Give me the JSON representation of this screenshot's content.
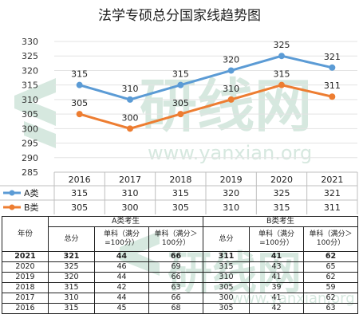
{
  "chart_data": {
    "type": "line",
    "title": "法学专硕总分国家线趋势图",
    "categories": [
      "2016",
      "2017",
      "2018",
      "2019",
      "2020",
      "2021"
    ],
    "ylim": [
      285,
      330
    ],
    "yticks": [
      285,
      290,
      295,
      300,
      305,
      310,
      315,
      320,
      325,
      330
    ],
    "grid": true,
    "legend": "left-of-data-table",
    "series": [
      {
        "name": "A类",
        "values": [
          315,
          310,
          315,
          320,
          325,
          321
        ],
        "color": "#5b9bd5"
      },
      {
        "name": "B类",
        "values": [
          305,
          300,
          305,
          310,
          315,
          311
        ],
        "color": "#ed7d31"
      }
    ]
  },
  "watermark": {
    "cn": "研线网",
    "url": "www.yanxian.org",
    "color": "#d6e8df"
  },
  "score_table": {
    "year_header": "年份",
    "group_a": "A类考生",
    "group_b": "B类考生",
    "col_total": "总分",
    "col_single_100": "单科（满分=100分）",
    "col_single_over100": "单科（满分＞100分）",
    "rows": [
      {
        "year": "2021",
        "a_total": "321",
        "a_s1": "44",
        "a_s2": "66",
        "b_total": "311",
        "b_s1": "41",
        "b_s2": "62",
        "bold": true
      },
      {
        "year": "2020",
        "a_total": "325",
        "a_s1": "46",
        "a_s2": "69",
        "b_total": "315",
        "b_s1": "43",
        "b_s2": "65",
        "bold": false
      },
      {
        "year": "2019",
        "a_total": "320",
        "a_s1": "44",
        "a_s2": "66",
        "b_total": "310",
        "b_s1": "41",
        "b_s2": "62",
        "bold": false
      },
      {
        "year": "2018",
        "a_total": "315",
        "a_s1": "42",
        "a_s2": "63",
        "b_total": "305",
        "b_s1": "39",
        "b_s2": "59",
        "bold": false
      },
      {
        "year": "2017",
        "a_total": "310",
        "a_s1": "44",
        "a_s2": "66",
        "b_total": "300",
        "b_s1": "41",
        "b_s2": "62",
        "bold": false
      },
      {
        "year": "2016",
        "a_total": "315",
        "a_s1": "45",
        "a_s2": "68",
        "b_total": "305",
        "b_s1": "42",
        "b_s2": "63",
        "bold": false
      }
    ]
  }
}
